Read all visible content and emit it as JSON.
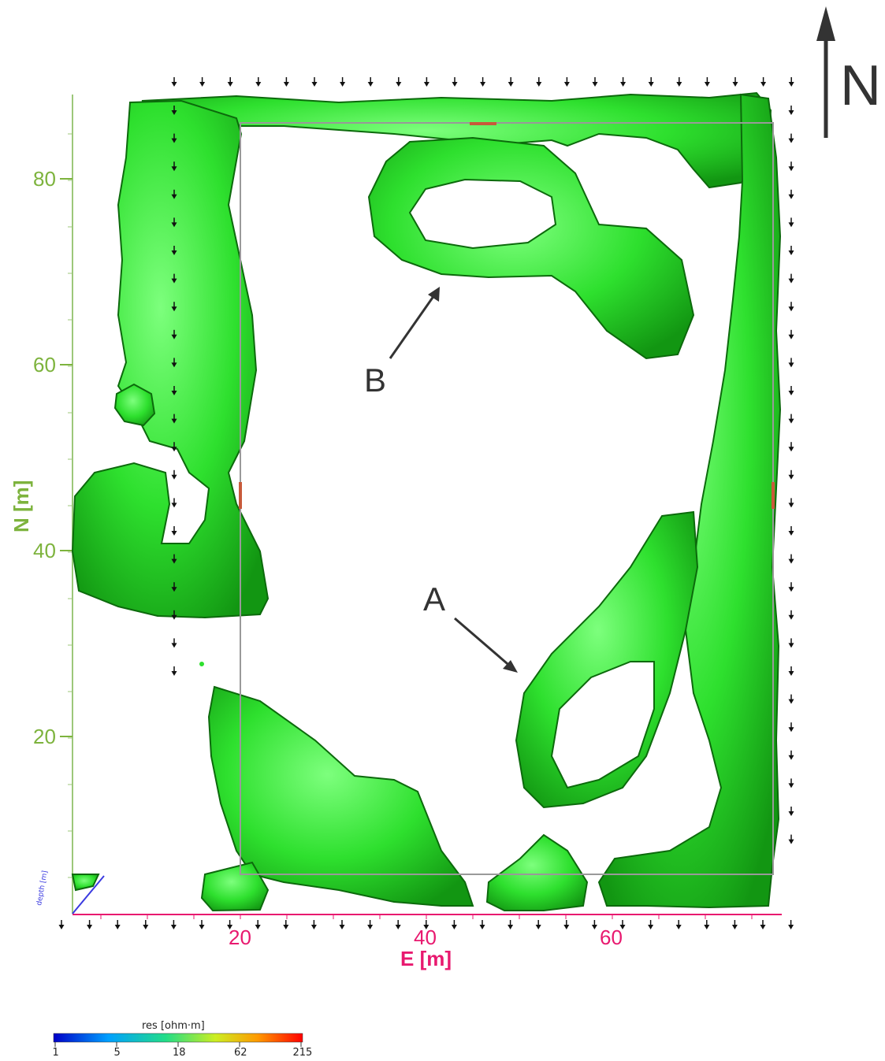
{
  "north_arrow": {
    "label": "N"
  },
  "axes": {
    "x": {
      "label": "E [m]",
      "ticks": [
        "20",
        "40",
        "60"
      ],
      "color": "#e8196f"
    },
    "y": {
      "label": "N [m]",
      "ticks": [
        "20",
        "40",
        "60",
        "80"
      ],
      "color": "#7db33d"
    },
    "z": {
      "label": "depth [m]",
      "color": "#3a3ae0"
    }
  },
  "annotations": [
    {
      "id": "A",
      "label": "A"
    },
    {
      "id": "B",
      "label": "B"
    }
  ],
  "colorbar": {
    "title": "res [ohm·m]",
    "ticks": [
      "1",
      "5",
      "18",
      "62",
      "215"
    ],
    "colors": [
      "#0000c8",
      "#00a0ff",
      "#22dd88",
      "#ccee22",
      "#ff9900",
      "#ff0000"
    ]
  },
  "isosurface_color": "#2ee02e",
  "frame_color": "#999999"
}
